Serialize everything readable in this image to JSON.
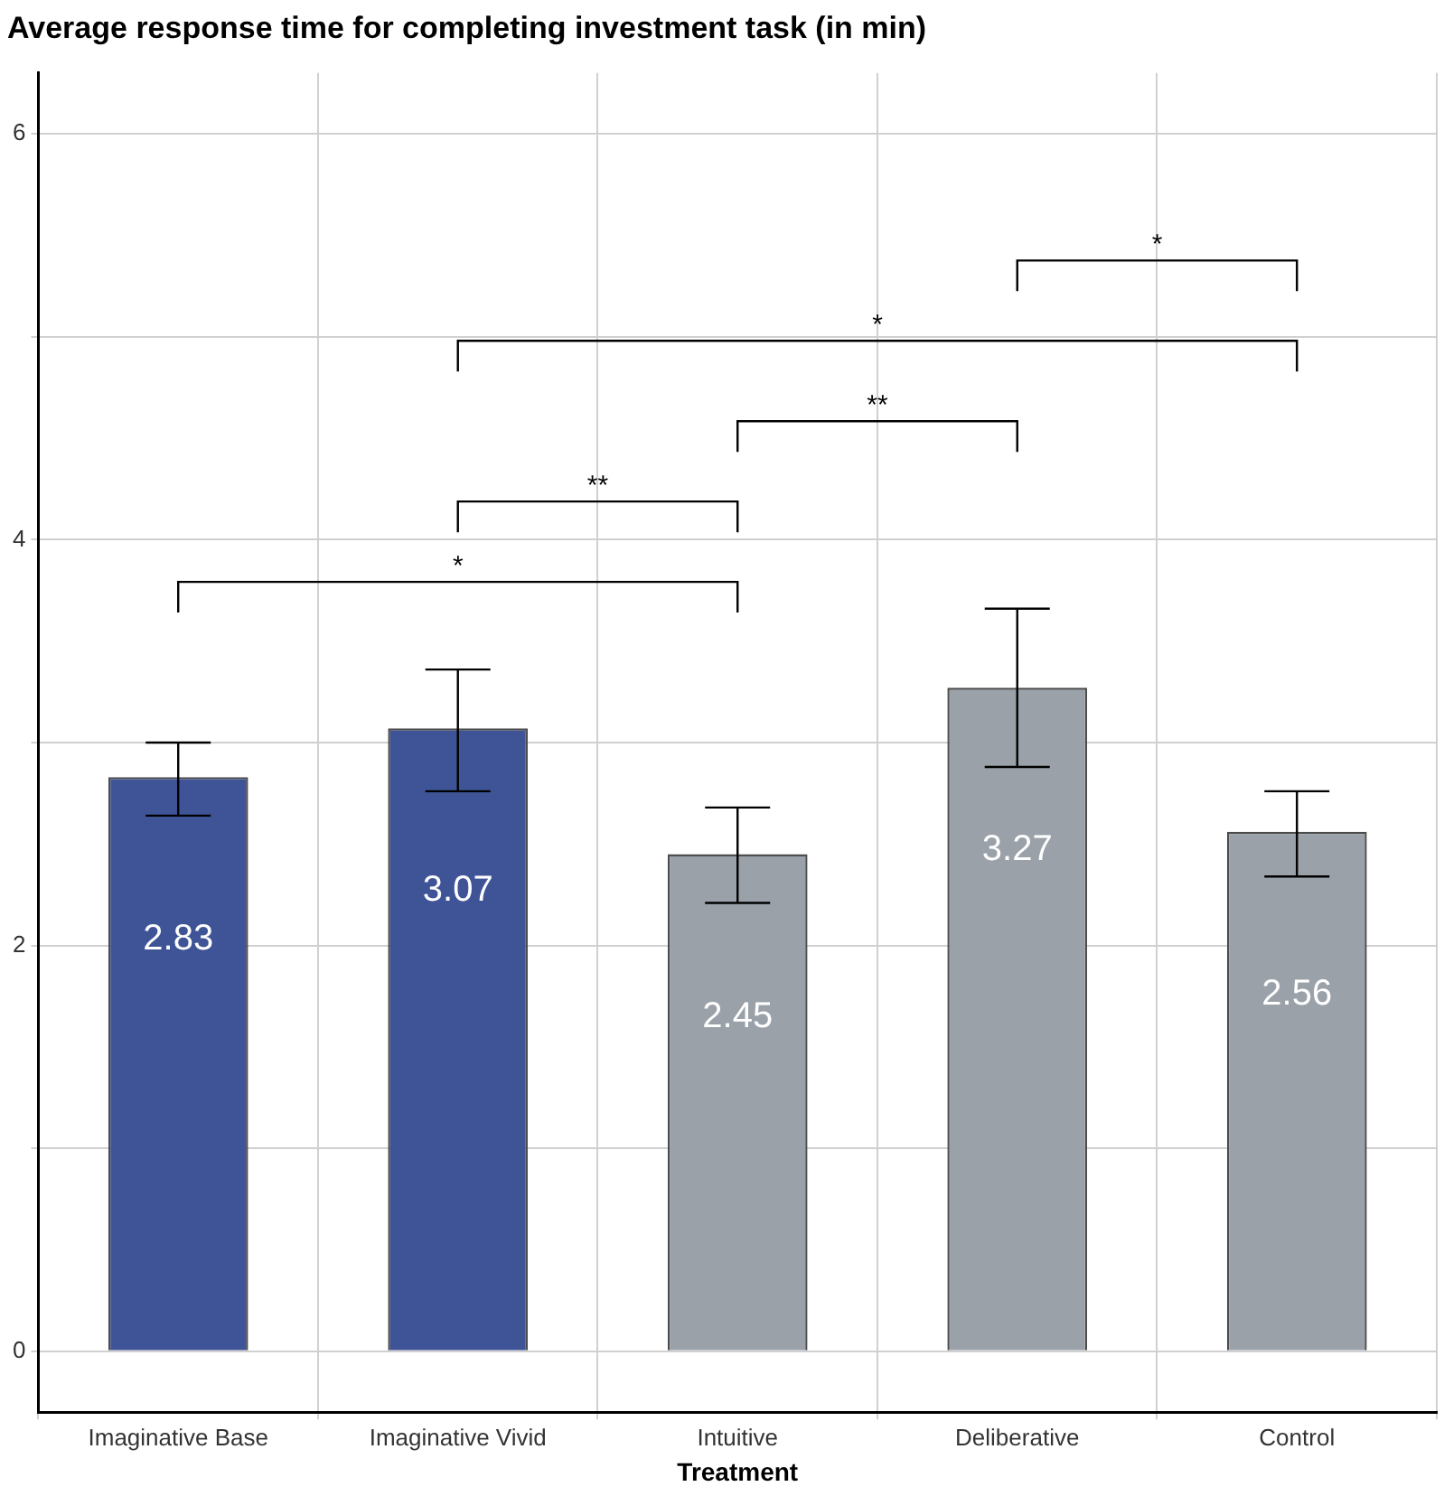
{
  "chart_data": {
    "type": "bar",
    "title": "Average response time for completing investment task (in min)",
    "xlabel": "Treatment",
    "categories": [
      "Imaginative Base",
      "Imaginative Vivid",
      "Intuitive",
      "Deliberative",
      "Control"
    ],
    "values": [
      2.83,
      3.07,
      2.45,
      3.27,
      2.56
    ],
    "colors": [
      "#3f5497",
      "#3f5497",
      "#9aa1a9",
      "#9aa1a9",
      "#9aa1a9"
    ],
    "errors": [
      [
        2.64,
        3.0
      ],
      [
        2.76,
        3.36
      ],
      [
        2.21,
        2.68
      ],
      [
        2.88,
        3.66
      ],
      [
        2.34,
        2.76
      ]
    ],
    "data_labels": true,
    "ylim": [
      -0.3,
      6.3
    ],
    "yticks": [
      0,
      {
        "value": 1,
        "label": null
      },
      2,
      {
        "value": 3,
        "label": null
      },
      4,
      {
        "value": 5,
        "label": null
      },
      6
    ],
    "grid": true,
    "legend": false,
    "annotations": [
      "*",
      "**",
      "**",
      "*",
      "*"
    ]
  }
}
